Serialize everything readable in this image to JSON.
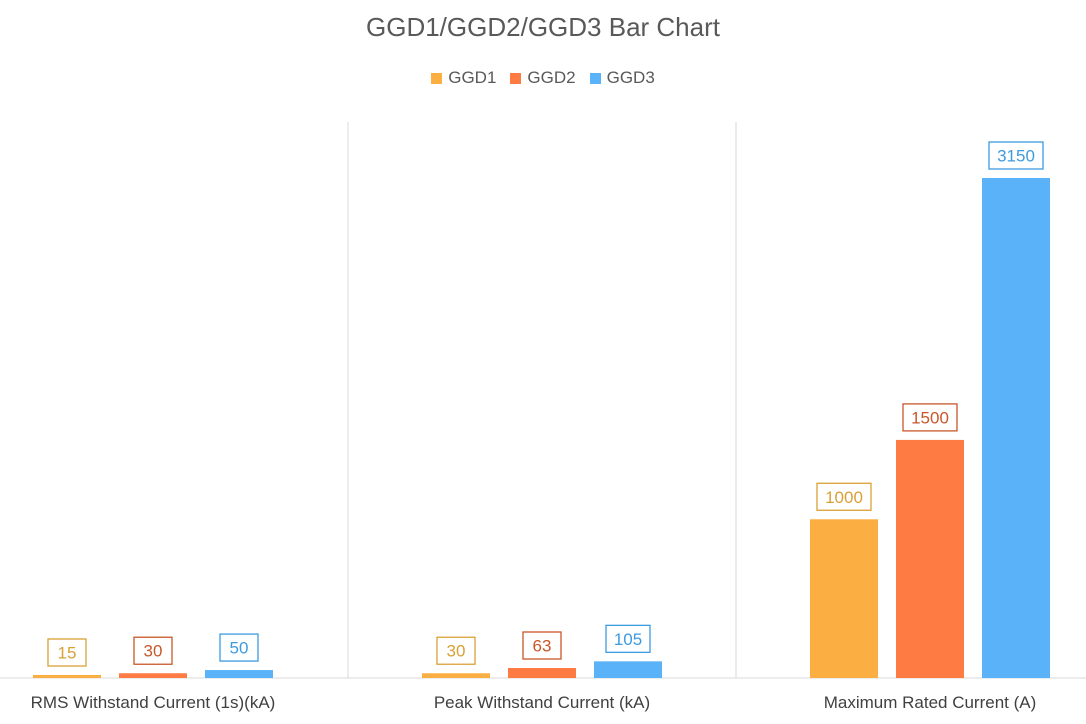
{
  "chart_data": {
    "type": "bar",
    "title": "GGD1/GGD2/GGD3 Bar Chart",
    "categories": [
      "RMS Withstand Current (1s)(kA)",
      "Peak Withstand Current (kA)",
      "Maximum Rated Current (A)"
    ],
    "series": [
      {
        "name": "GGD1",
        "values": [
          15,
          30,
          1000
        ],
        "color": "#FBAE42"
      },
      {
        "name": "GGD2",
        "values": [
          30,
          63,
          1500
        ],
        "color": "#FF7B44"
      },
      {
        "name": "GGD3",
        "values": [
          50,
          105,
          3150
        ],
        "color": "#5AB2F8"
      }
    ],
    "label_colors": [
      "#D9A036",
      "#C8572A",
      "#3D9BE0"
    ],
    "ylim": [
      0,
      3400
    ],
    "legend": "top-center",
    "grid": false,
    "panel_dividers": true
  }
}
